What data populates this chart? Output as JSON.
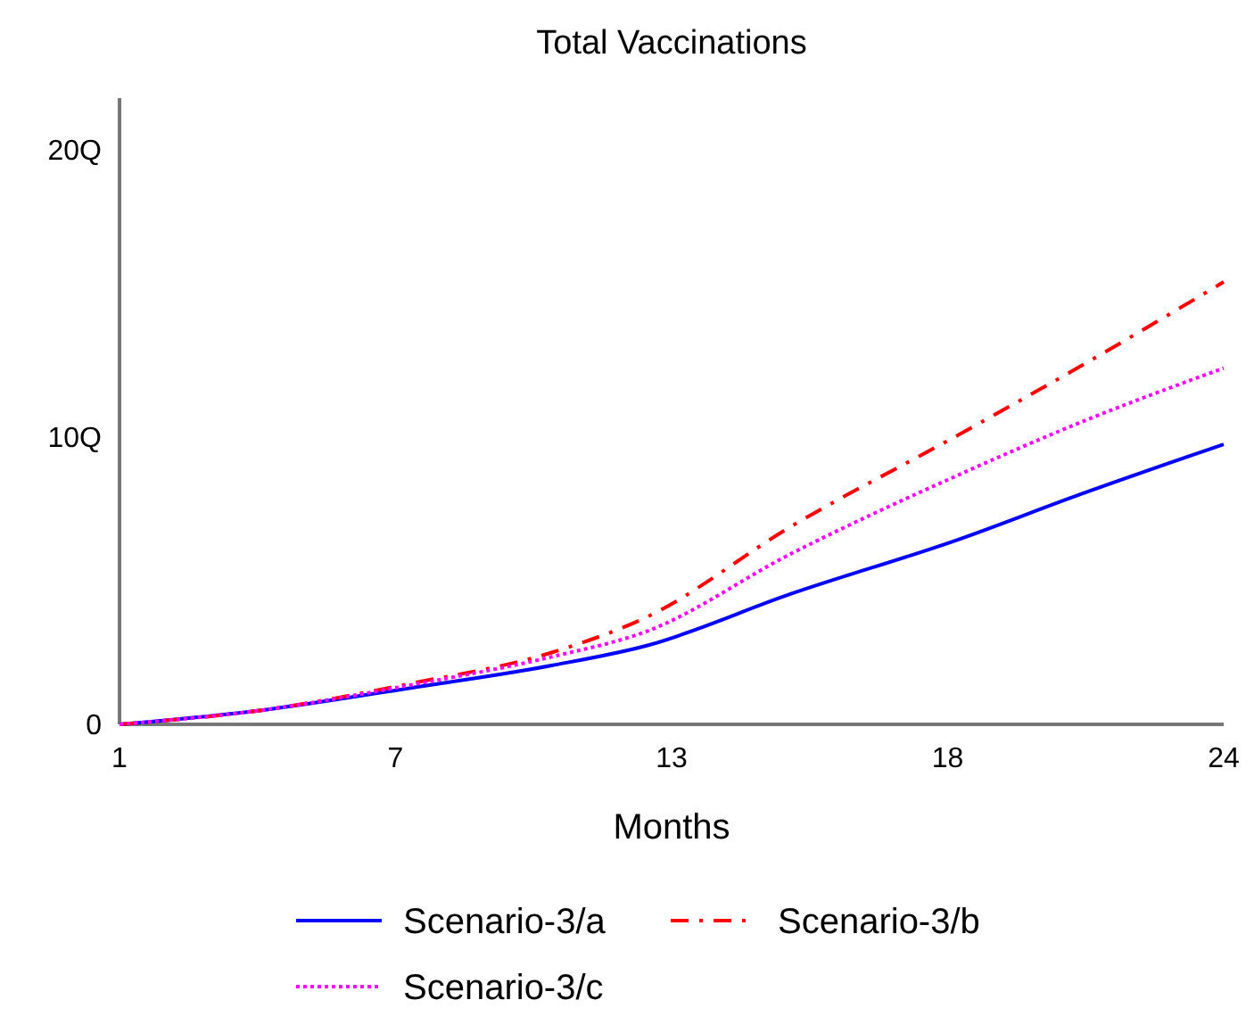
{
  "chart_data": {
    "type": "line",
    "title": "Total Vaccinations",
    "xlabel": "Months",
    "x": [
      1,
      4,
      7,
      10,
      12,
      15,
      18.5,
      21,
      24
    ],
    "xlim": [
      1,
      24
    ],
    "xticks": [
      1,
      {
        "value": 6.75,
        "label": "7"
      },
      {
        "value": 12.5,
        "label": "13"
      },
      {
        "value": 18.25,
        "label": "18"
      },
      24
    ],
    "ylim": [
      0,
      21.8
    ],
    "yticks": [
      0,
      {
        "value": 10,
        "label": "10Q"
      },
      {
        "value": 20,
        "label": "20Q"
      }
    ],
    "grid": false,
    "legend": "bottom",
    "series": [
      {
        "name": "Scenario-3/a",
        "color": "#0000ff",
        "line_style": "solid",
        "values": [
          0,
          0.5,
          1.25,
          2.05,
          2.75,
          4.55,
          6.45,
          8.0,
          9.75
        ]
      },
      {
        "name": "Scenario-3/b",
        "color": "#ff0000",
        "line_style": "dashdot",
        "values": [
          0,
          0.5,
          1.4,
          2.5,
          3.75,
          6.9,
          10.1,
          12.45,
          15.4
        ]
      },
      {
        "name": "Scenario-3/c",
        "color": "#ff00ff",
        "line_style": "dotted",
        "values": [
          0,
          0.5,
          1.35,
          2.35,
          3.25,
          5.95,
          8.7,
          10.5,
          12.4
        ]
      }
    ]
  }
}
